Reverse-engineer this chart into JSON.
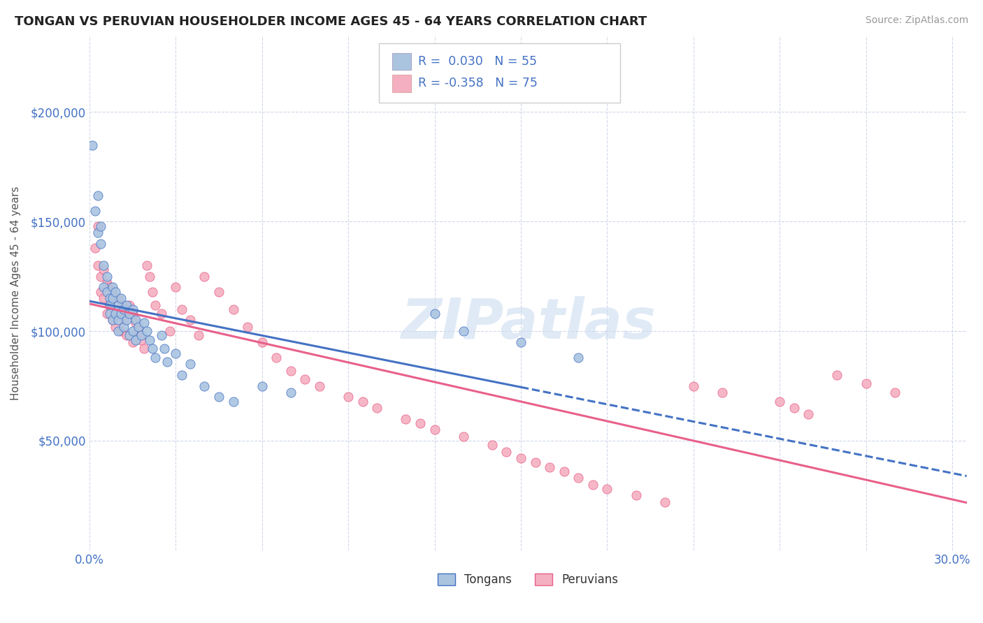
{
  "title": "TONGAN VS PERUVIAN HOUSEHOLDER INCOME AGES 45 - 64 YEARS CORRELATION CHART",
  "source": "Source: ZipAtlas.com",
  "ylabel": "Householder Income Ages 45 - 64 years",
  "xlim": [
    0.0,
    0.305
  ],
  "ylim": [
    0,
    235000
  ],
  "xticks": [
    0.0,
    0.03,
    0.06,
    0.09,
    0.12,
    0.15,
    0.18,
    0.21,
    0.24,
    0.27,
    0.3
  ],
  "xticklabels": [
    "0.0%",
    "",
    "",
    "",
    "",
    "",
    "",
    "",
    "",
    "",
    "30.0%"
  ],
  "ytick_positions": [
    50000,
    100000,
    150000,
    200000
  ],
  "ytick_labels": [
    "$50,000",
    "$100,000",
    "$150,000",
    "$200,000"
  ],
  "background_color": "#ffffff",
  "grid_color": "#d0d8e8",
  "watermark": "ZIPatlas",
  "tongan_color": "#aac4e0",
  "peruvian_color": "#f4afc0",
  "tongan_line_color": "#4472c4",
  "peruvian_line_color": "#e8608a",
  "R_tongan": 0.03,
  "N_tongan": 55,
  "R_peruvian": -0.358,
  "N_peruvian": 75,
  "tongan_scatter_x": [
    0.001,
    0.002,
    0.003,
    0.003,
    0.004,
    0.004,
    0.005,
    0.005,
    0.006,
    0.006,
    0.007,
    0.007,
    0.007,
    0.008,
    0.008,
    0.008,
    0.009,
    0.009,
    0.01,
    0.01,
    0.01,
    0.011,
    0.011,
    0.012,
    0.012,
    0.013,
    0.013,
    0.014,
    0.014,
    0.015,
    0.015,
    0.016,
    0.016,
    0.017,
    0.018,
    0.019,
    0.02,
    0.021,
    0.022,
    0.023,
    0.025,
    0.026,
    0.027,
    0.03,
    0.032,
    0.035,
    0.04,
    0.045,
    0.05,
    0.06,
    0.07,
    0.12,
    0.13,
    0.15,
    0.17
  ],
  "tongan_scatter_y": [
    185000,
    155000,
    145000,
    162000,
    140000,
    148000,
    130000,
    120000,
    125000,
    118000,
    115000,
    112000,
    108000,
    120000,
    115000,
    105000,
    118000,
    108000,
    112000,
    105000,
    100000,
    115000,
    108000,
    110000,
    102000,
    112000,
    105000,
    108000,
    98000,
    110000,
    100000,
    105000,
    96000,
    102000,
    98000,
    104000,
    100000,
    96000,
    92000,
    88000,
    98000,
    92000,
    86000,
    90000,
    80000,
    85000,
    75000,
    70000,
    68000,
    75000,
    72000,
    108000,
    100000,
    95000,
    88000
  ],
  "peruvian_scatter_x": [
    0.002,
    0.003,
    0.003,
    0.004,
    0.004,
    0.005,
    0.005,
    0.006,
    0.006,
    0.007,
    0.007,
    0.008,
    0.008,
    0.009,
    0.009,
    0.01,
    0.01,
    0.011,
    0.011,
    0.012,
    0.012,
    0.013,
    0.013,
    0.014,
    0.015,
    0.015,
    0.016,
    0.017,
    0.018,
    0.019,
    0.02,
    0.021,
    0.022,
    0.023,
    0.025,
    0.028,
    0.03,
    0.032,
    0.035,
    0.038,
    0.04,
    0.045,
    0.05,
    0.055,
    0.06,
    0.065,
    0.07,
    0.075,
    0.08,
    0.09,
    0.095,
    0.1,
    0.11,
    0.115,
    0.12,
    0.13,
    0.14,
    0.145,
    0.15,
    0.155,
    0.16,
    0.165,
    0.17,
    0.175,
    0.18,
    0.19,
    0.2,
    0.21,
    0.22,
    0.24,
    0.245,
    0.25,
    0.26,
    0.27,
    0.28
  ],
  "peruvian_scatter_y": [
    138000,
    148000,
    130000,
    125000,
    118000,
    128000,
    115000,
    122000,
    108000,
    120000,
    112000,
    118000,
    105000,
    115000,
    102000,
    115000,
    108000,
    110000,
    100000,
    112000,
    105000,
    108000,
    98000,
    112000,
    108000,
    95000,
    104000,
    100000,
    96000,
    92000,
    130000,
    125000,
    118000,
    112000,
    108000,
    100000,
    120000,
    110000,
    105000,
    98000,
    125000,
    118000,
    110000,
    102000,
    95000,
    88000,
    82000,
    78000,
    75000,
    70000,
    68000,
    65000,
    60000,
    58000,
    55000,
    52000,
    48000,
    45000,
    42000,
    40000,
    38000,
    36000,
    33000,
    30000,
    28000,
    25000,
    22000,
    75000,
    72000,
    68000,
    65000,
    62000,
    80000,
    76000,
    72000
  ]
}
